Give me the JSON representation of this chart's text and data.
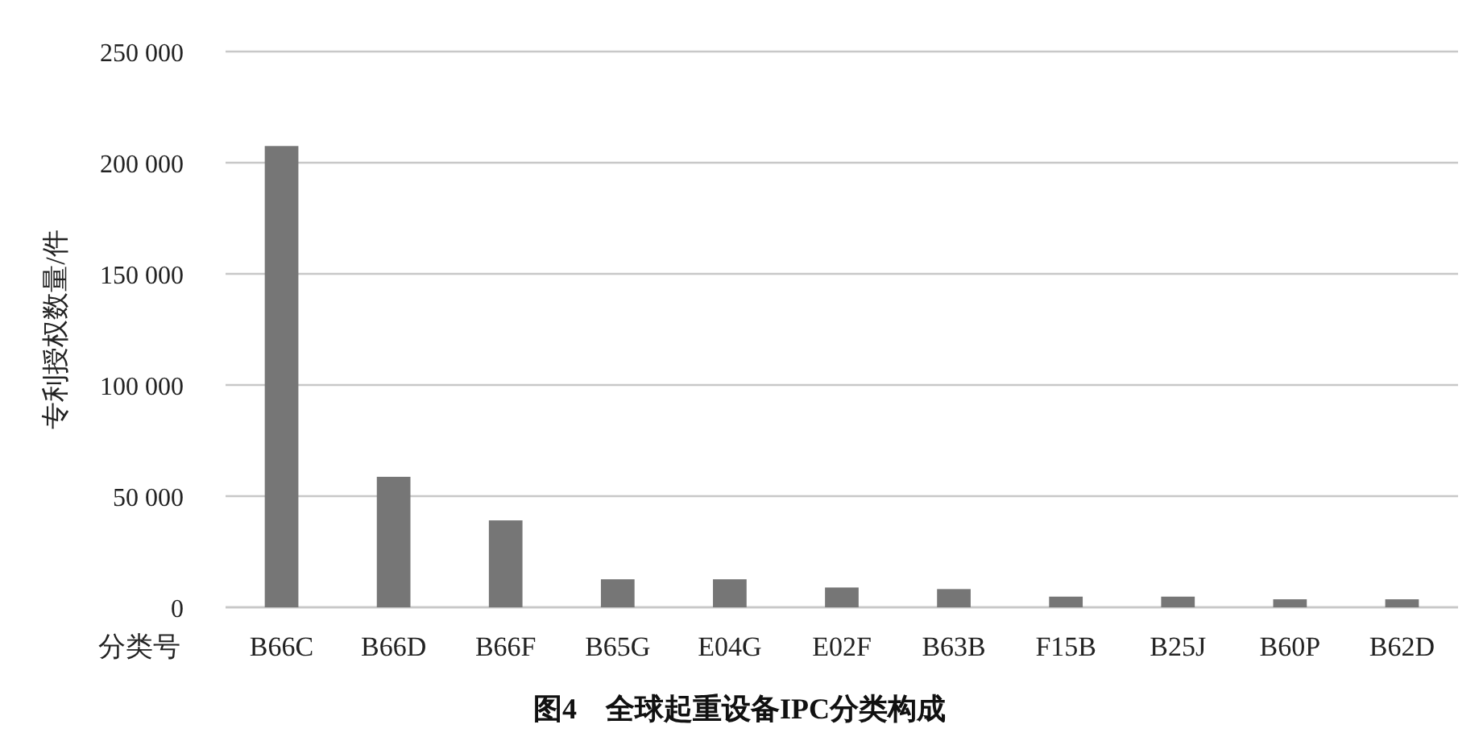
{
  "chart_data": {
    "type": "bar",
    "title": "图4　全球起重设备IPC分类构成",
    "xlabel": "分类号",
    "ylabel": "专利授权数量/件",
    "categories": [
      "B66C",
      "B66D",
      "B66F",
      "B65G",
      "E04G",
      "E02F",
      "B63B",
      "F15B",
      "B25J",
      "B60P",
      "B62D"
    ],
    "values": [
      207500,
      58700,
      39100,
      12600,
      12600,
      8900,
      8200,
      4800,
      4800,
      3600,
      3600
    ],
    "color": "#767676",
    "ylim": [
      0,
      250000
    ],
    "yticks": [
      {
        "value": 0,
        "label": "0"
      },
      {
        "value": 50000,
        "label": "50 000"
      },
      {
        "value": 100000,
        "label": "100 000"
      },
      {
        "value": 150000,
        "label": "150 000"
      },
      {
        "value": 200000,
        "label": "200 000"
      },
      {
        "value": 250000,
        "label": "250 000"
      }
    ],
    "grid": "y"
  }
}
